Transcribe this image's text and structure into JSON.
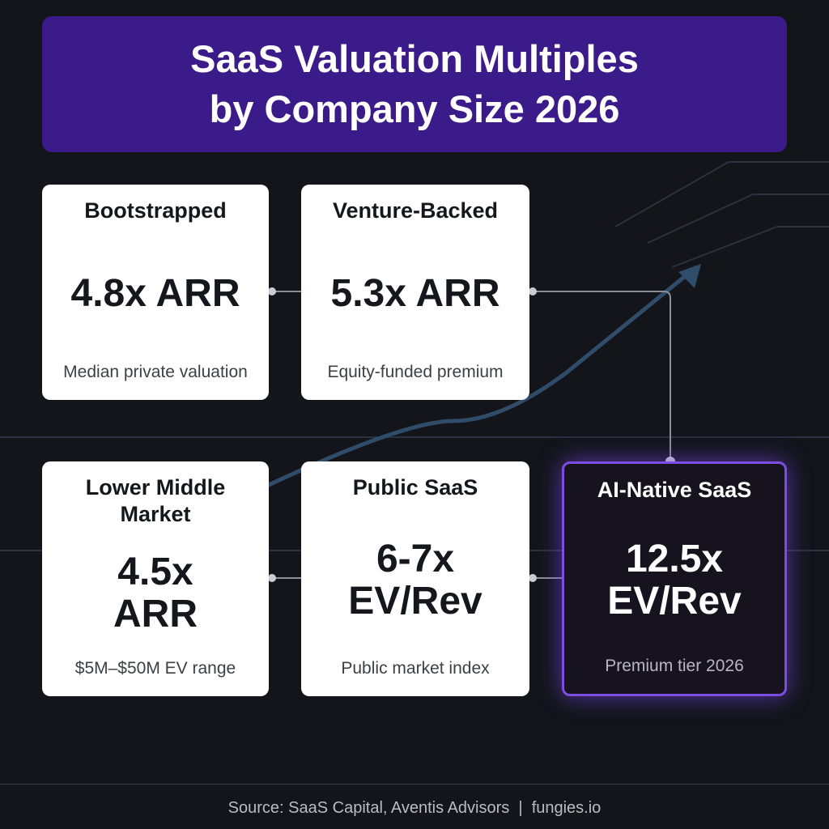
{
  "header": {
    "title_lines": [
      "SaaS Valuation Multiples",
      "by Company Size 2026"
    ]
  },
  "cards": [
    {
      "title": "Bootstrapped",
      "value": "4.8x ARR",
      "caption": "Median private valuation"
    },
    {
      "title": "Venture-Backed",
      "value": "5.3x ARR",
      "caption": "Equity-funded premium"
    },
    {
      "title": "Lower Middle Market",
      "value": "4.5x ARR",
      "caption": "$5M–$50M EV range"
    },
    {
      "title": "Public SaaS",
      "value": "6-7x EV/Rev",
      "caption": "Public market index"
    },
    {
      "title": "AI-Native SaaS",
      "value": "12.5x EV/Rev",
      "caption": "Premium tier 2026"
    }
  ],
  "footer": {
    "source": "Source: SaaS Capital, Aventis Advisors  |  fungies.io"
  }
}
